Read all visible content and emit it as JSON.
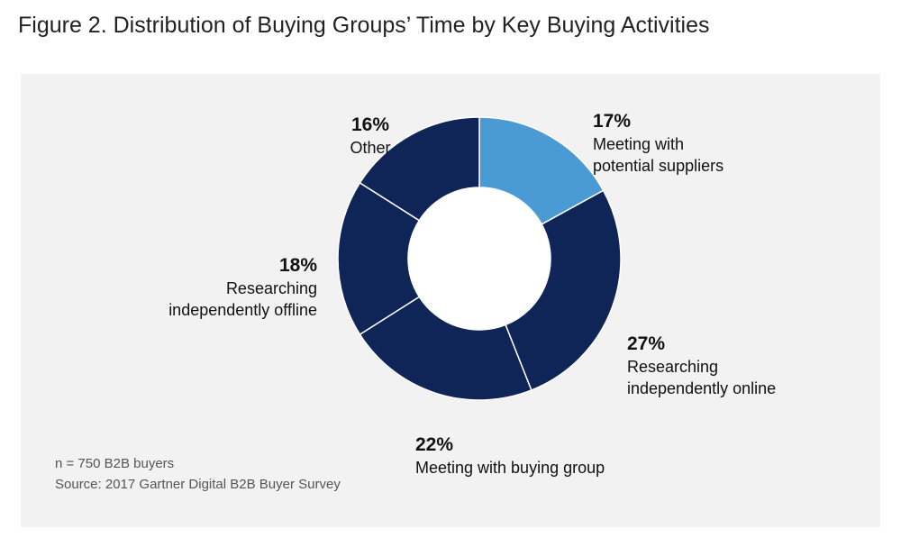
{
  "title": "Figure 2. Distribution of Buying Groups’ Time by Key Buying Activities",
  "chart_data": {
    "type": "pie",
    "donut": true,
    "title": "Figure 2. Distribution of Buying Groups’ Time by Key Buying Activities",
    "slices": [
      {
        "pct_label": "17%",
        "value": 17,
        "label_lines": [
          "Meeting with",
          "potential suppliers"
        ],
        "color": "#4a9ad4"
      },
      {
        "pct_label": "27%",
        "value": 27,
        "label_lines": [
          "Researching",
          "independently online"
        ],
        "color": "#0f2557"
      },
      {
        "pct_label": "22%",
        "value": 22,
        "label_lines": [
          "Meeting with buying group"
        ],
        "color": "#0f2557"
      },
      {
        "pct_label": "18%",
        "value": 18,
        "label_lines": [
          "Researching",
          "independently offline"
        ],
        "color": "#0f2557"
      },
      {
        "pct_label": "16%",
        "value": 16,
        "label_lines": [
          "Other"
        ],
        "color": "#0f2557"
      }
    ],
    "separator_color": "#ffffff",
    "hole_color": "#ffffff",
    "background": "#f2f2f2"
  },
  "footnotes": {
    "sample": "n = 750 B2B buyers",
    "source": "Source: 2017 Gartner Digital B2B Buyer Survey"
  }
}
